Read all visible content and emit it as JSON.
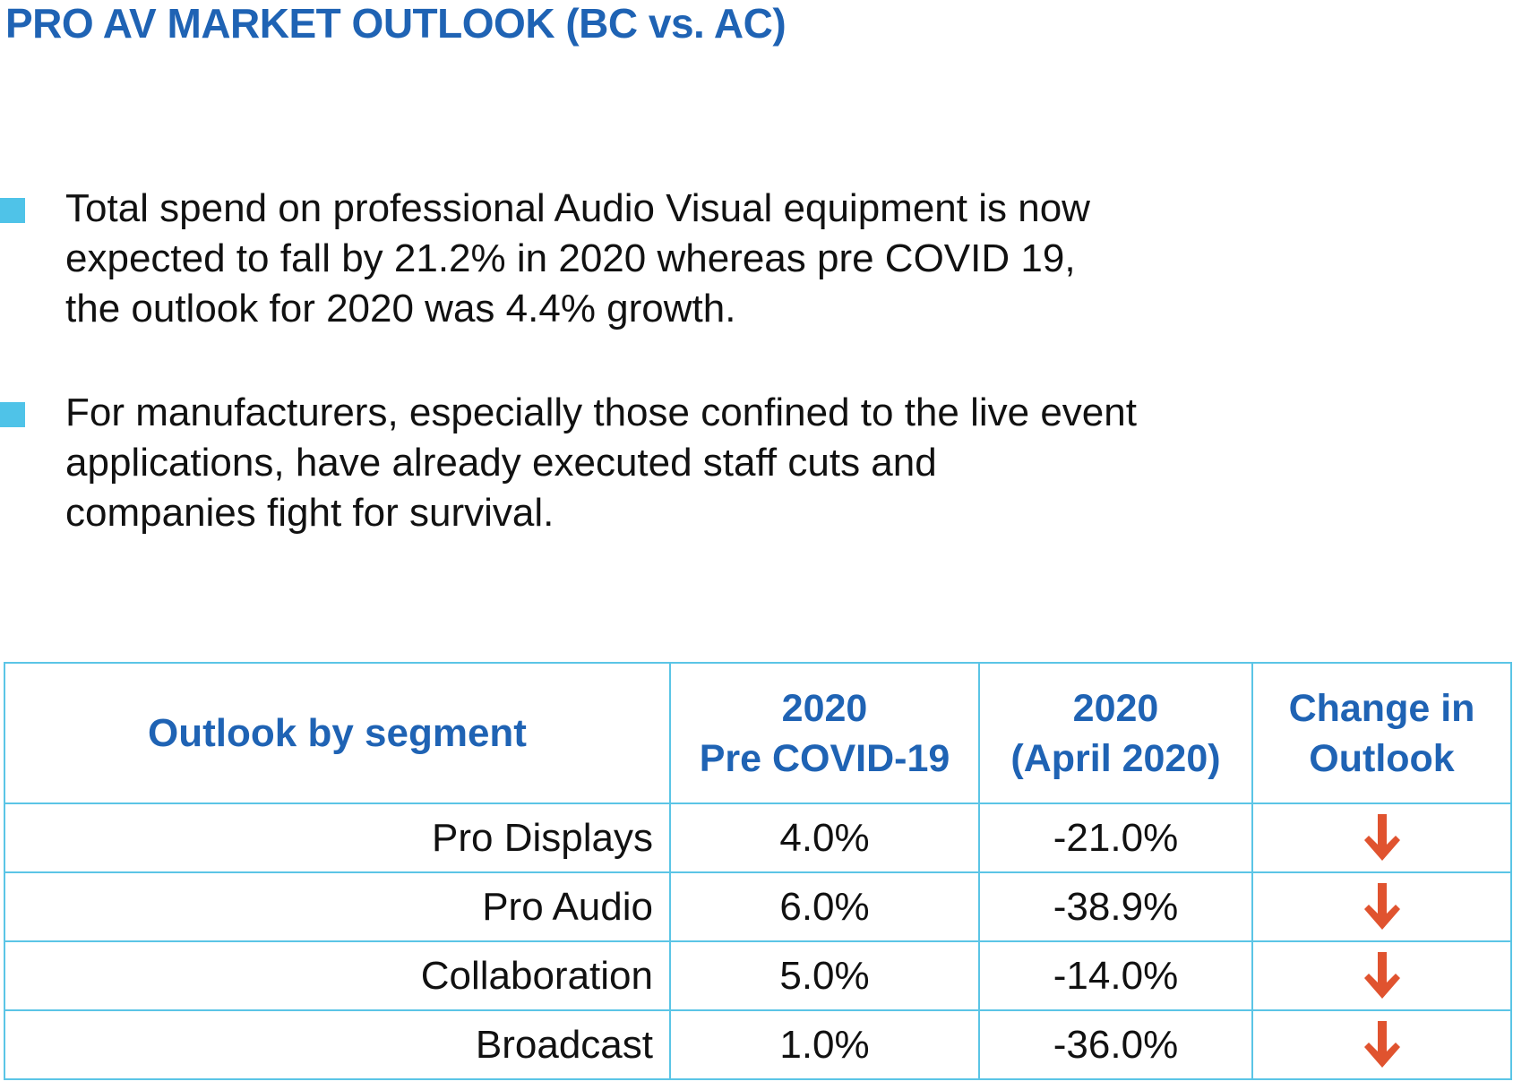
{
  "title": "PRO AV MARKET OUTLOOK (BC vs. AC)",
  "colors": {
    "title": "#1f63b4",
    "bullet": "#4fc3e8",
    "table_border": "#5bc5e6",
    "arrow": "#e0532f"
  },
  "bullets": [
    {
      "text": "Total spend on professional Audio Visual equipment is now\nexpected to fall by 21.2% in 2020 whereas pre COVID 19,\nthe outlook for 2020 was 4.4% growth."
    },
    {
      "text": "For manufacturers, especially those confined to the live event\napplications, have already executed staff cuts and\ncompanies fight for survival."
    }
  ],
  "table": {
    "headers": {
      "segment": "Outlook by segment",
      "pre_line1": "2020",
      "pre_line2": "Pre COVID-19",
      "apr_line1": "2020",
      "apr_line2": "(April 2020)",
      "change_line1": "Change in",
      "change_line2": "Outlook"
    },
    "rows": [
      {
        "segment": "Pro Displays",
        "pre": "4.0%",
        "april": "-21.0%",
        "change_icon": "arrow-down-icon"
      },
      {
        "segment": "Pro Audio",
        "pre": "6.0%",
        "april": "-38.9%",
        "change_icon": "arrow-down-icon"
      },
      {
        "segment": "Collaboration",
        "pre": "5.0%",
        "april": "-14.0%",
        "change_icon": "arrow-down-icon"
      },
      {
        "segment": "Broadcast",
        "pre": "1.0%",
        "april": "-36.0%",
        "change_icon": "arrow-down-icon"
      }
    ]
  }
}
